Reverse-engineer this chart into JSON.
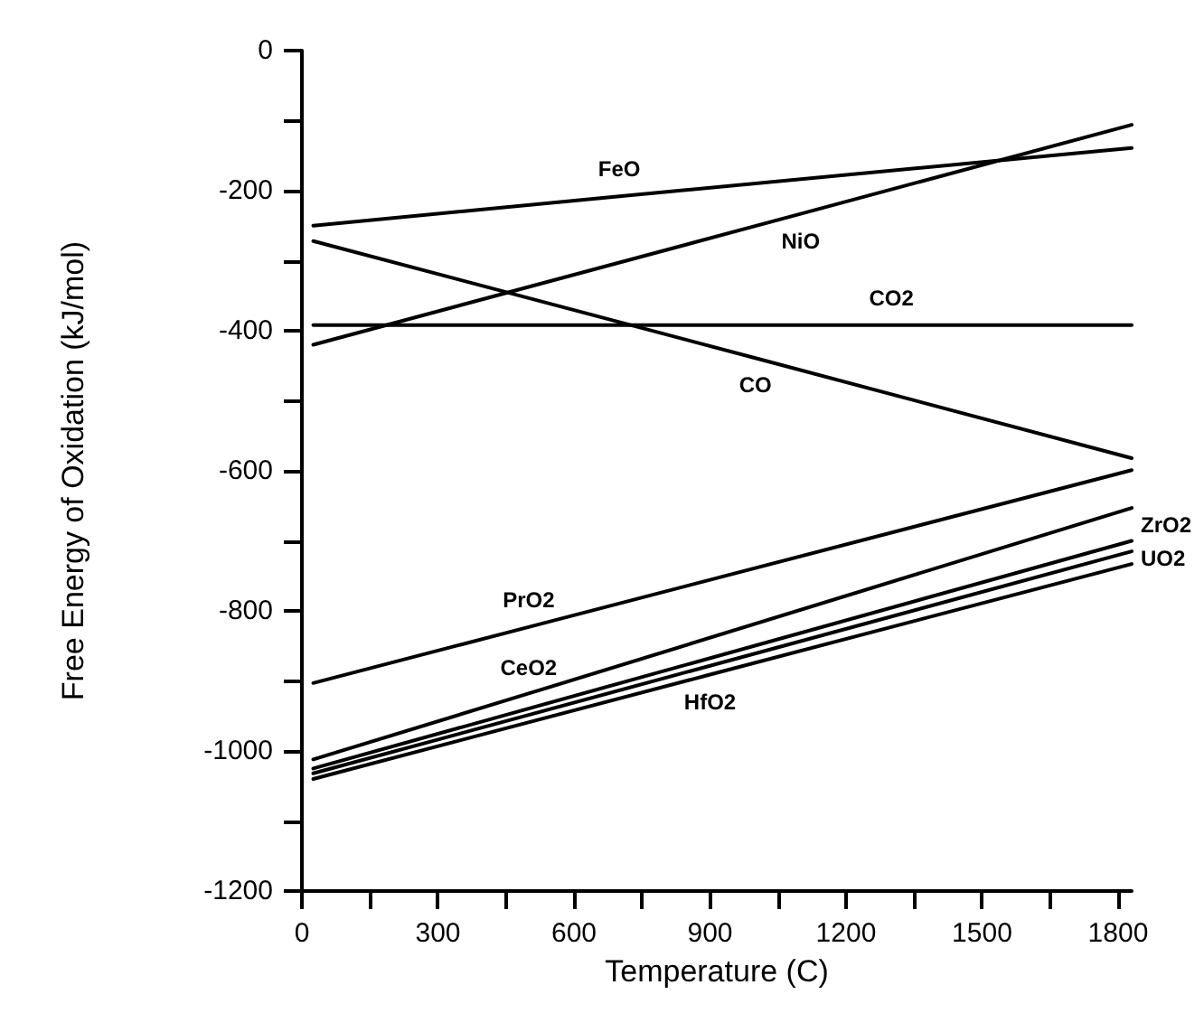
{
  "chart_data": {
    "type": "line",
    "xlabel": "Temperature (C)",
    "ylabel": "Free Energy of Oxidation (kJ/mol)",
    "xlim": [
      0,
      1830
    ],
    "ylim": [
      -1200,
      0
    ],
    "xticks": [
      0,
      {
        "value": 150,
        "label": null
      },
      300,
      {
        "value": 450,
        "label": null
      },
      600,
      {
        "value": 750,
        "label": null
      },
      900,
      {
        "value": 1050,
        "label": null
      },
      1200,
      {
        "value": 1350,
        "label": null
      },
      1500,
      {
        "value": 1650,
        "label": null
      },
      1800
    ],
    "yticks": [
      -1200,
      {
        "value": -1100,
        "label": null
      },
      -1000,
      {
        "value": -900,
        "label": null
      },
      -800,
      {
        "value": -700,
        "label": null
      },
      -600,
      {
        "value": -500,
        "label": null
      },
      -400,
      {
        "value": -300,
        "label": null
      },
      -200,
      {
        "value": -100,
        "label": null
      },
      0
    ],
    "grid": false,
    "legend": false,
    "marker": "none",
    "line_style": "solid",
    "series": [
      {
        "name": "FeO",
        "color": "#000000",
        "x": [
          25,
          700,
          1830
        ],
        "values": [
          -250,
          -208,
          -139
        ]
      },
      {
        "name": "NiO",
        "color": "#000000",
        "x": [
          25,
          1100,
          1830
        ],
        "values": [
          -420,
          -233,
          -106
        ]
      },
      {
        "name": "CO2",
        "color": "#000000",
        "x": [
          25,
          1300,
          1830
        ],
        "values": [
          -392,
          -392,
          -392
        ]
      },
      {
        "name": "CO",
        "color": "#000000",
        "x": [
          25,
          1000,
          1830
        ],
        "values": [
          -272,
          -439,
          -582
        ]
      },
      {
        "name": "PrO2",
        "color": "#000000",
        "x": [
          25,
          500,
          1830
        ],
        "values": [
          -903,
          -823,
          -599
        ]
      },
      {
        "name": "CeO2",
        "color": "#000000",
        "x": [
          25,
          500,
          1830
        ],
        "values": [
          -1012,
          -918,
          -653
        ]
      },
      {
        "name": "HfO2",
        "color": "#000000",
        "x": [
          25,
          900,
          1830
        ],
        "values": [
          -1040,
          -891,
          -733
        ]
      },
      {
        "name": "UO2",
        "color": "#000000",
        "x": [
          25,
          1830
        ],
        "values": [
          -1032,
          -715
        ]
      },
      {
        "name": "ZrO2",
        "color": "#000000",
        "x": [
          25,
          1830
        ],
        "values": [
          -1025,
          -700
        ]
      }
    ]
  }
}
